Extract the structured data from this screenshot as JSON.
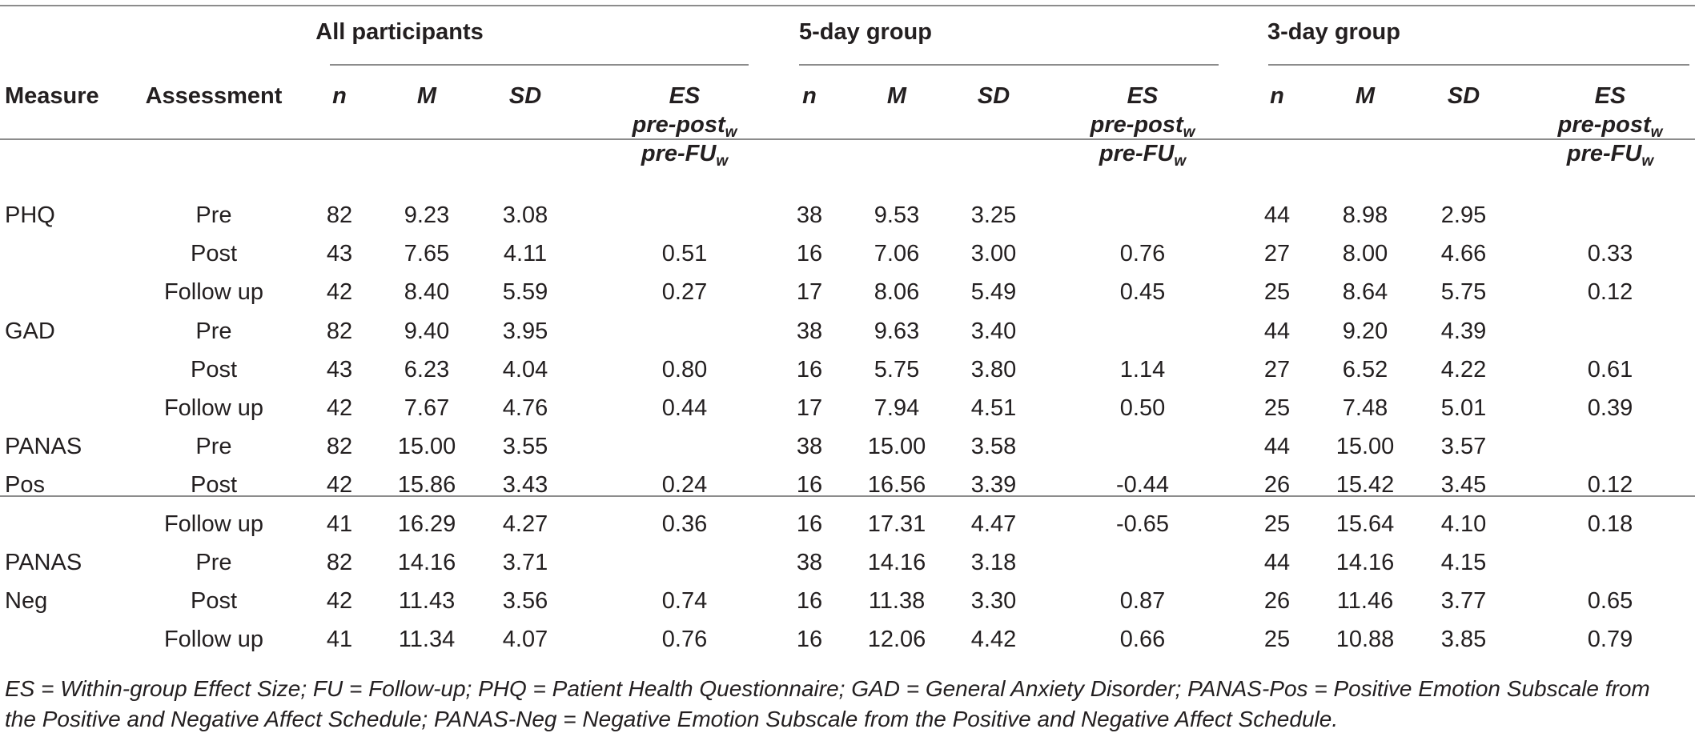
{
  "table": {
    "groups": [
      "All participants",
      "5-day group",
      "3-day group"
    ],
    "row_headers": {
      "measure": "Measure",
      "assessment": "Assessment"
    },
    "stat_headers": {
      "n": "n",
      "M": "M",
      "SD": "SD",
      "ES_line1": "ES",
      "ES_line2_main": "pre-post",
      "ES_line2_sub": "w",
      "ES_line3_main": "pre-FU",
      "ES_line3_sub": "w"
    },
    "rows": [
      {
        "measure": "PHQ",
        "assessment": "Pre",
        "all": [
          "82",
          "9.23",
          "3.08",
          ""
        ],
        "five": [
          "38",
          "9.53",
          "3.25",
          ""
        ],
        "three": [
          "44",
          "8.98",
          "2.95",
          ""
        ]
      },
      {
        "measure": "",
        "assessment": "Post",
        "all": [
          "43",
          "7.65",
          "4.11",
          "0.51"
        ],
        "five": [
          "16",
          "7.06",
          "3.00",
          "0.76"
        ],
        "three": [
          "27",
          "8.00",
          "4.66",
          "0.33"
        ]
      },
      {
        "measure": "",
        "assessment": "Follow up",
        "all": [
          "42",
          "8.40",
          "5.59",
          "0.27"
        ],
        "five": [
          "17",
          "8.06",
          "5.49",
          "0.45"
        ],
        "three": [
          "25",
          "8.64",
          "5.75",
          "0.12"
        ]
      },
      {
        "measure": "GAD",
        "assessment": "Pre",
        "all": [
          "82",
          "9.40",
          "3.95",
          ""
        ],
        "five": [
          "38",
          "9.63",
          "3.40",
          ""
        ],
        "three": [
          "44",
          "9.20",
          "4.39",
          ""
        ]
      },
      {
        "measure": "",
        "assessment": "Post",
        "all": [
          "43",
          "6.23",
          "4.04",
          "0.80"
        ],
        "five": [
          "16",
          "5.75",
          "3.80",
          "1.14"
        ],
        "three": [
          "27",
          "6.52",
          "4.22",
          "0.61"
        ]
      },
      {
        "measure": "",
        "assessment": "Follow up",
        "all": [
          "42",
          "7.67",
          "4.76",
          "0.44"
        ],
        "five": [
          "17",
          "7.94",
          "4.51",
          "0.50"
        ],
        "three": [
          "25",
          "7.48",
          "5.01",
          "0.39"
        ]
      },
      {
        "measure": "PANAS",
        "assessment": "Pre",
        "all": [
          "82",
          "15.00",
          "3.55",
          ""
        ],
        "five": [
          "38",
          "15.00",
          "3.58",
          ""
        ],
        "three": [
          "44",
          "15.00",
          "3.57",
          ""
        ]
      },
      {
        "measure": "Pos",
        "assessment": "Post",
        "all": [
          "42",
          "15.86",
          "3.43",
          "0.24"
        ],
        "five": [
          "16",
          "16.56",
          "3.39",
          "-0.44"
        ],
        "three": [
          "26",
          "15.42",
          "3.45",
          "0.12"
        ]
      },
      {
        "measure": "",
        "assessment": "Follow up",
        "all": [
          "41",
          "16.29",
          "4.27",
          "0.36"
        ],
        "five": [
          "16",
          "17.31",
          "4.47",
          "-0.65"
        ],
        "three": [
          "25",
          "15.64",
          "4.10",
          "0.18"
        ]
      },
      {
        "measure": "PANAS",
        "assessment": "Pre",
        "all": [
          "82",
          "14.16",
          "3.71",
          ""
        ],
        "five": [
          "38",
          "14.16",
          "3.18",
          ""
        ],
        "three": [
          "44",
          "14.16",
          "4.15",
          ""
        ]
      },
      {
        "measure": "Neg",
        "assessment": "Post",
        "all": [
          "42",
          "11.43",
          "3.56",
          "0.74"
        ],
        "five": [
          "16",
          "11.38",
          "3.30",
          "0.87"
        ],
        "three": [
          "26",
          "11.46",
          "3.77",
          "0.65"
        ]
      },
      {
        "measure": "",
        "assessment": "Follow up",
        "all": [
          "41",
          "11.34",
          "4.07",
          "0.76"
        ],
        "five": [
          "16",
          "12.06",
          "4.42",
          "0.66"
        ],
        "three": [
          "25",
          "10.88",
          "3.85",
          "0.79"
        ]
      }
    ]
  },
  "footnote": "ES = Within-group Effect Size; FU = Follow-up; PHQ = Patient Health Questionnaire; GAD = General Anxiety Disorder; PANAS-Pos = Positive Emotion Subscale from the Positive and Negative Affect Schedule; PANAS-Neg = Negative Emotion Subscale from the Positive and Negative Affect Schedule."
}
